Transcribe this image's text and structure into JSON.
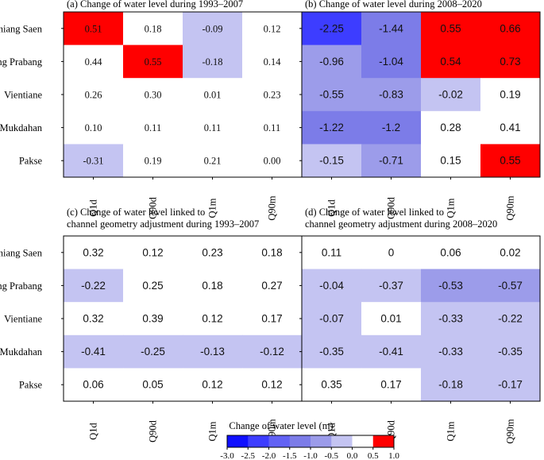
{
  "chart_data": [
    {
      "type": "heatmap",
      "title": "(a) Change of water level during 1993–2007",
      "rows": [
        "Chiang Saen",
        "Luang Prabang",
        "Vientiane",
        "Mukdahan",
        "Pakse"
      ],
      "columns": [
        "Q1d",
        "Q90d",
        "Q1m",
        "Q90m"
      ],
      "values": [
        [
          "0.51",
          "0.18",
          "-0.09",
          "0.12"
        ],
        [
          "0.44",
          "0.55",
          "-0.18",
          "0.14"
        ],
        [
          "0.26",
          "0.30",
          "0.01",
          "0.23"
        ],
        [
          "0.10",
          "0.11",
          "0.11",
          "0.11"
        ],
        [
          "-0.31",
          "0.19",
          "0.21",
          "0.00"
        ]
      ]
    },
    {
      "type": "heatmap",
      "title": "(b) Change of water level during 2008–2020",
      "rows": [
        "Chiang Saen",
        "Luang Prabang",
        "Vientiane",
        "Mukdahan",
        "Pakse"
      ],
      "columns": [
        "Q1d",
        "Q90d",
        "Q1m",
        "Q90m"
      ],
      "values": [
        [
          "-2.25",
          "-1.44",
          "0.55",
          "0.66"
        ],
        [
          "-0.96",
          "-1.04",
          "0.54",
          "0.73"
        ],
        [
          "-0.55",
          "-0.83",
          "-0.02",
          "0.19"
        ],
        [
          "-1.22",
          "-1.2",
          "0.28",
          "0.41"
        ],
        [
          "-0.15",
          "-0.71",
          "0.15",
          "0.55"
        ]
      ]
    },
    {
      "type": "heatmap",
      "title": [
        "(c) Change of water level linked to",
        "channel geometry adjustment during 1993–2007"
      ],
      "rows": [
        "Chiang Saen",
        "Luang Prabang",
        "Vientiane",
        "Mukdahan",
        "Pakse"
      ],
      "columns": [
        "Q1d",
        "Q90d",
        "Q1m",
        "Q90m"
      ],
      "values": [
        [
          "0.32",
          "0.12",
          "0.23",
          "0.18"
        ],
        [
          "-0.22",
          "0.25",
          "0.18",
          "0.27"
        ],
        [
          "0.32",
          "0.39",
          "0.12",
          "0.17"
        ],
        [
          "-0.41",
          "-0.25",
          "-0.13",
          "-0.12"
        ],
        [
          "0.06",
          "0.05",
          "0.12",
          "0.12"
        ]
      ]
    },
    {
      "type": "heatmap",
      "title": [
        "(d) Change of water level linked to",
        "channel geometry adjustment during 2008–2020"
      ],
      "rows": [
        "Chiang Saen",
        "Luang Prabang",
        "Vientiane",
        "Mukdahan",
        "Pakse"
      ],
      "columns": [
        "Q1d",
        "Q90d",
        "Q1m",
        "Q90m"
      ],
      "values": [
        [
          "0.11",
          "0",
          "0.06",
          "0.02"
        ],
        [
          "-0.04",
          "-0.37",
          "-0.53",
          "-0.57"
        ],
        [
          "-0.07",
          "0.01",
          "-0.33",
          "-0.22"
        ],
        [
          "-0.35",
          "-0.41",
          "-0.33",
          "-0.35"
        ],
        [
          "0.35",
          "0.17",
          "-0.18",
          "-0.17"
        ]
      ]
    }
  ],
  "colorbar": {
    "label": "Change of water level (m)",
    "ticks": [
      "-3.0",
      "-2.5",
      "-2.0",
      "-1.5",
      "-1.0",
      "-0.5",
      "0.0",
      "0.5",
      "1.0"
    ],
    "bins": [
      -3.0,
      -2.5,
      -2.0,
      -1.5,
      -1.0,
      -0.5,
      0.0,
      0.5,
      1.0
    ],
    "colors": [
      "#1010ff",
      "#3d3dff",
      "#6262f4",
      "#7c7ce8",
      "#9c9cea",
      "#c4c4f2",
      "#ffffff",
      "#ff0000"
    ]
  }
}
